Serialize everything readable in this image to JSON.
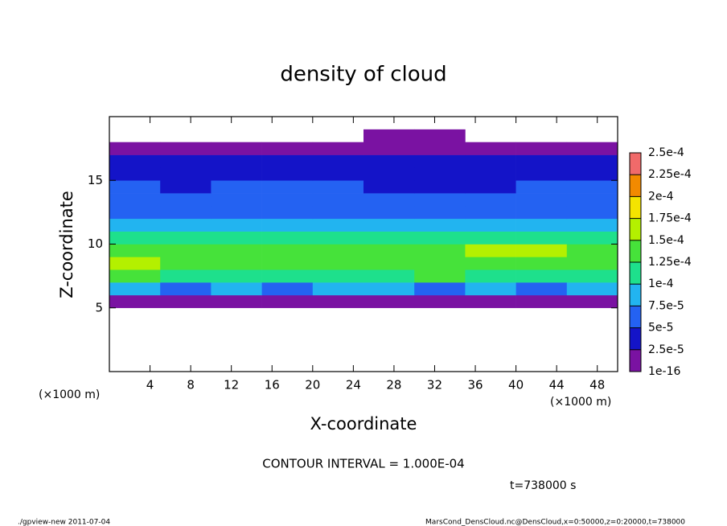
{
  "chart_data": {
    "type": "contour",
    "title": "density of cloud",
    "x_label": "X-coordinate",
    "y_label": "Z-coordinate",
    "x_unit": "(×1000 m)",
    "contour_note": "CONTOUR INTERVAL = 1.000E-04",
    "time_note": "t=738000 s",
    "footer_left": "./gpview-new   2011-07-04",
    "footer_right": "MarsCond_DensCloud.nc@DensCloud,x=0:50000,z=0:20000,t=738000",
    "xlim": [
      0,
      50
    ],
    "ylim": [
      0,
      20
    ],
    "xticks": [
      4,
      8,
      12,
      16,
      20,
      24,
      28,
      32,
      36,
      40,
      44,
      48
    ],
    "yticks": [
      5,
      10,
      15
    ],
    "x": [
      0,
      5,
      10,
      15,
      20,
      25,
      30,
      35,
      40,
      45,
      50
    ],
    "z": [
      5,
      6,
      7,
      8,
      9,
      10,
      11,
      12,
      13,
      14,
      15,
      16,
      17,
      18,
      19
    ],
    "values": [
      [
        2e-05,
        2e-05,
        2e-05,
        2e-05,
        2e-05,
        2e-05,
        2e-05,
        2e-05,
        2e-05,
        2e-05
      ],
      [
        8e-05,
        7e-05,
        8e-05,
        6e-05,
        8e-05,
        8e-05,
        7e-05,
        8e-05,
        7e-05,
        8e-05
      ],
      [
        0.00013,
        0.00012,
        0.00011,
        0.00012,
        0.00012,
        0.00012,
        0.00013,
        0.00012,
        0.00012,
        0.00011
      ],
      [
        0.00015,
        0.00014,
        0.00013,
        0.00013,
        0.00013,
        0.00013,
        0.00014,
        0.00014,
        0.00014,
        0.00013
      ],
      [
        0.00013,
        0.00013,
        0.00013,
        0.00013,
        0.00013,
        0.00014,
        0.00014,
        0.00015,
        0.00015,
        0.00014
      ],
      [
        0.00011,
        0.00011,
        0.00011,
        0.00011,
        0.00011,
        0.00011,
        0.00011,
        0.00012,
        0.00012,
        0.00011
      ],
      [
        9e-05,
        8e-05,
        9e-05,
        8e-05,
        8e-05,
        8e-05,
        8e-05,
        9e-05,
        9e-05,
        9e-05
      ],
      [
        7e-05,
        6e-05,
        6e-05,
        6e-05,
        6e-05,
        6e-05,
        6e-05,
        7e-05,
        7e-05,
        7e-05
      ],
      [
        6e-05,
        5e-05,
        5e-05,
        6e-05,
        6e-05,
        5e-05,
        5e-05,
        5e-05,
        6e-05,
        6e-05
      ],
      [
        5e-05,
        4e-05,
        5e-05,
        5e-05,
        5e-05,
        4e-05,
        4e-05,
        4e-05,
        5e-05,
        5e-05
      ],
      [
        4e-05,
        4e-05,
        4e-05,
        4e-05,
        4e-05,
        4e-05,
        4e-05,
        4e-05,
        4e-05,
        4e-05
      ],
      [
        3e-05,
        3e-05,
        3e-05,
        3e-05,
        3e-05,
        3e-05,
        3e-05,
        3e-05,
        3e-05,
        3e-05
      ],
      [
        1e-05,
        1e-05,
        1e-05,
        1e-05,
        1e-05,
        1e-05,
        1e-05,
        1e-05,
        1e-05,
        1e-05
      ],
      [
        null,
        null,
        null,
        null,
        null,
        1e-05,
        1e-05,
        null,
        null,
        null
      ]
    ],
    "levels": [
      1e-16,
      {
        "value": 2.5e-05,
        "label": "2.5e-5"
      },
      {
        "value": 5e-05,
        "label": "5e-5"
      },
      {
        "value": 7.5e-05,
        "label": "7.5e-5"
      },
      {
        "value": 0.0001,
        "label": "1e-4"
      },
      {
        "value": 0.000125,
        "label": "1.25e-4"
      },
      {
        "value": 0.00015,
        "label": "1.5e-4"
      },
      {
        "value": 0.000175,
        "label": "1.75e-4"
      },
      {
        "value": 0.0002,
        "label": "2e-4"
      },
      {
        "value": 0.000225,
        "label": "2.25e-4"
      },
      {
        "value": 0.00025,
        "label": "2.5e-4"
      }
    ],
    "colors": [
      "#7a12a2",
      "#1414c8",
      "#2462f2",
      "#22b4f0",
      "#1ee08c",
      "#46e23a",
      "#b4f000",
      "#f4e400",
      "#f28a00",
      "#f06a6a"
    ]
  }
}
